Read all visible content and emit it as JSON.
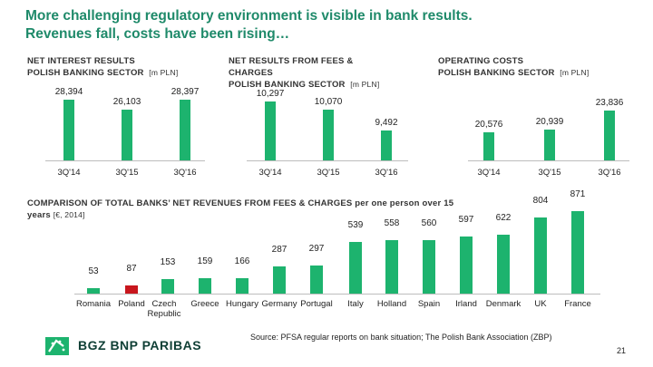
{
  "title_line1": "More challenging regulatory environment is visible in bank results.",
  "title_line2": "Revenues fall, costs have been rising…",
  "brand": {
    "name": "BGZ BNP PARIBAS",
    "accent": "#1db36e",
    "title_color": "#1f8a6a",
    "highlight": "#c8161d"
  },
  "panels": [
    {
      "title_line1": "NET INTEREST RESULTS",
      "title_line2": "POLISH BANKING SECTOR",
      "unit": "[m PLN]",
      "chart_data": {
        "type": "bar",
        "categories": [
          "3Q'14",
          "3Q'15",
          "3Q'16"
        ],
        "values": [
          28394,
          26103,
          28397
        ],
        "value_labels": [
          "28,394",
          "26,103",
          "28,397"
        ]
      }
    },
    {
      "title_line1": "NET RESULTS FROM FEES &",
      "title_line2": "CHARGES",
      "title_line3": "POLISH BANKING SECTOR",
      "unit": "[m PLN]",
      "chart_data": {
        "type": "bar",
        "categories": [
          "3Q'14",
          "3Q'15",
          "3Q'16"
        ],
        "values": [
          10297,
          10070,
          9492
        ],
        "value_labels": [
          "10,297",
          "10,070",
          "9,492"
        ]
      }
    },
    {
      "title_line1": "OPERATING COSTS",
      "title_line2": "POLISH BANKING SECTOR",
      "unit": "[m PLN]",
      "chart_data": {
        "type": "bar",
        "categories": [
          "3Q'14",
          "3Q'15",
          "3Q'16"
        ],
        "values": [
          20576,
          20939,
          23836
        ],
        "value_labels": [
          "20,576",
          "20,939",
          "23,836"
        ]
      }
    }
  ],
  "comparison": {
    "title": "COMPARISON OF TOTAL BANKS’ NET REVENUES FROM FEES & CHARGES per one person over 15",
    "title_line2": "years",
    "unit": "[€, 2014]",
    "chart_data": {
      "type": "bar",
      "categories": [
        "Romania",
        "Poland",
        "Czech Republic",
        "Greece",
        "Hungary",
        "Germany",
        "Portugal",
        "Italy",
        "Holland",
        "Spain",
        "Irland",
        "Denmark",
        "UK",
        "France"
      ],
      "values": [
        53,
        87,
        153,
        159,
        166,
        287,
        297,
        539,
        558,
        560,
        597,
        622,
        804,
        871
      ],
      "highlight": "Poland"
    }
  },
  "source": "Source: PFSA regular reports on bank situation; The Polish Bank Association (ZBP)",
  "page_number": "21"
}
